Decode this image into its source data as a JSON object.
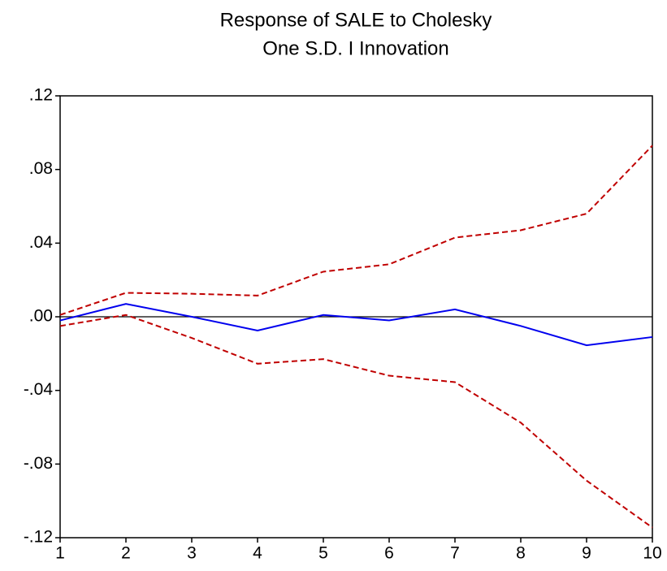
{
  "chart_data": {
    "type": "line",
    "title": "Response of SALE to Cholesky",
    "subtitle": "One S.D. I Innovation",
    "x": [
      1,
      2,
      3,
      4,
      5,
      6,
      7,
      8,
      9,
      10
    ],
    "xlim": [
      1,
      10
    ],
    "xticks": [
      1,
      2,
      3,
      4,
      5,
      6,
      7,
      8,
      9,
      10
    ],
    "ylim": [
      -0.12,
      0.12
    ],
    "yticks": [
      {
        "value": 0.12,
        "label": ".12"
      },
      {
        "value": 0.08,
        "label": ".08"
      },
      {
        "value": 0.04,
        "label": ".04"
      },
      {
        "value": 0,
        "label": ".00"
      },
      {
        "value": -0.04,
        "label": "-.04"
      },
      {
        "value": -0.08,
        "label": "-.08"
      },
      {
        "value": -0.12,
        "label": "-.12"
      }
    ],
    "hline": 0,
    "series": [
      {
        "color": "#0000ee",
        "dashed": false,
        "values": [
          -0.002,
          0.007,
          0.0,
          -0.0075,
          0.001,
          -0.002,
          0.004,
          -0.005,
          -0.0155,
          -0.011
        ]
      },
      {
        "color": "#c00000",
        "dashed": true,
        "values": [
          0.001,
          0.013,
          0.0125,
          0.0115,
          0.0245,
          0.0285,
          0.043,
          0.047,
          0.056,
          0.093
        ]
      },
      {
        "color": "#c00000",
        "dashed": true,
        "values": [
          -0.005,
          0.001,
          -0.0115,
          -0.0255,
          -0.023,
          -0.032,
          -0.0355,
          -0.0575,
          -0.089,
          -0.1145
        ]
      }
    ]
  }
}
